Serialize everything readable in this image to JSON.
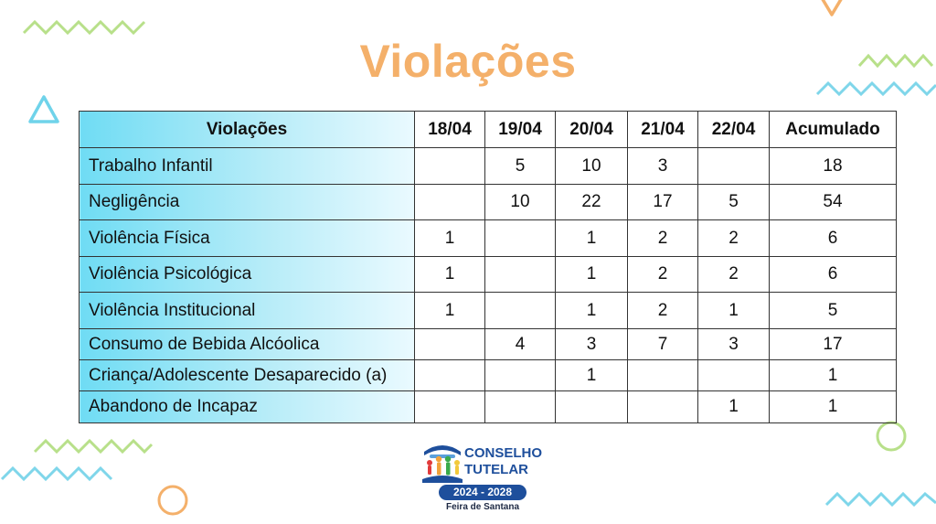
{
  "title": "Violações",
  "table": {
    "headers": [
      "Violações",
      "18/04",
      "19/04",
      "20/04",
      "21/04",
      "22/04",
      "Acumulado"
    ],
    "rows": [
      [
        "Trabalho Infantil",
        "",
        "5",
        "10",
        "3",
        "",
        "18"
      ],
      [
        "Negligência",
        "",
        "10",
        "22",
        "17",
        "5",
        "54"
      ],
      [
        "Violência Física",
        "1",
        "",
        "1",
        "2",
        "2",
        "6"
      ],
      [
        "Violência Psicológica",
        "1",
        "",
        "1",
        "2",
        "2",
        "6"
      ],
      [
        "Violência Institucional",
        "1",
        "",
        "1",
        "2",
        "1",
        "5"
      ],
      [
        "Consumo de Bebida Alcóolica",
        "",
        "4",
        "3",
        "7",
        "3",
        "17"
      ],
      [
        "Criança/Adolescente Desaparecido (a)",
        "",
        "",
        "1",
        "",
        "",
        "1"
      ],
      [
        "Abandono de Incapaz",
        "",
        "",
        "",
        "",
        "1",
        "1"
      ]
    ]
  },
  "logo": {
    "line1": "CONSELHO",
    "line2": "TUTELAR",
    "years": "2024 - 2028",
    "city": "Feira de Santana"
  },
  "colors": {
    "title": "#f4b06a",
    "header_gradient_start": "#6fdcf4",
    "zigzag_green": "#b8e08a",
    "zigzag_blue": "#7fd6ea",
    "logo_blue": "#1e4f9c"
  },
  "icons": [
    "triangle-outline-icon",
    "circle-outline-icon",
    "zigzag-line-icon",
    "family-emblem-icon"
  ]
}
